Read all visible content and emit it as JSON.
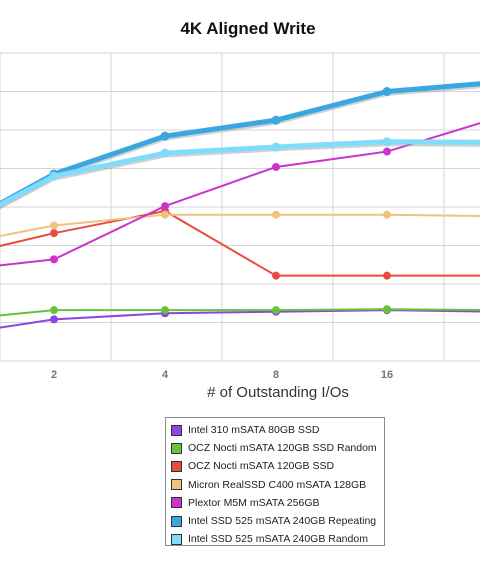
{
  "chart_data": {
    "type": "line",
    "title": "4K Aligned Write",
    "xlabel": "# of Outstanding I/Os",
    "ylabel": "",
    "x_ticks": [
      "2",
      "4",
      "8",
      "16"
    ],
    "x": [
      1,
      2,
      4,
      8,
      16,
      32
    ],
    "y_range": [
      0,
      1
    ],
    "grid": true,
    "legend_position": "bottom-center",
    "series": [
      {
        "name": "Intel 310 mSATA 80GB SSD",
        "color": "#8e44e0",
        "values": [
          0.08,
          0.135,
          0.155,
          0.16,
          0.165,
          0.16
        ]
      },
      {
        "name": "OCZ Nocti mSATA 120GB SSD Random",
        "color": "#66c33a",
        "values": [
          0.13,
          0.165,
          0.165,
          0.165,
          0.168,
          0.165
        ]
      },
      {
        "name": "OCZ Nocti mSATA 120GB SSD",
        "color": "#e84c3d",
        "values": [
          0.33,
          0.415,
          0.487,
          0.277,
          0.277,
          0.277
        ]
      },
      {
        "name": "Micron RealSSD C400 mSATA 128GB",
        "color": "#eec27f",
        "values": [
          0.37,
          0.44,
          0.475,
          0.475,
          0.475,
          0.47
        ]
      },
      {
        "name": "Plextor M5M mSATA 256GB",
        "color": "#cc33cc",
        "values": [
          0.29,
          0.33,
          0.503,
          0.63,
          0.68,
          0.79
        ]
      },
      {
        "name": "Intel SSD 525 mSATA 240GB Repeating",
        "color": "#3aa7e0",
        "values": [
          0.41,
          0.607,
          0.73,
          0.782,
          0.875,
          0.905
        ]
      },
      {
        "name": "Intel SSD 525 mSATA 240GB Random",
        "color": "#7fdcfa",
        "values": [
          0.41,
          0.6,
          0.675,
          0.695,
          0.712,
          0.71
        ]
      }
    ]
  }
}
